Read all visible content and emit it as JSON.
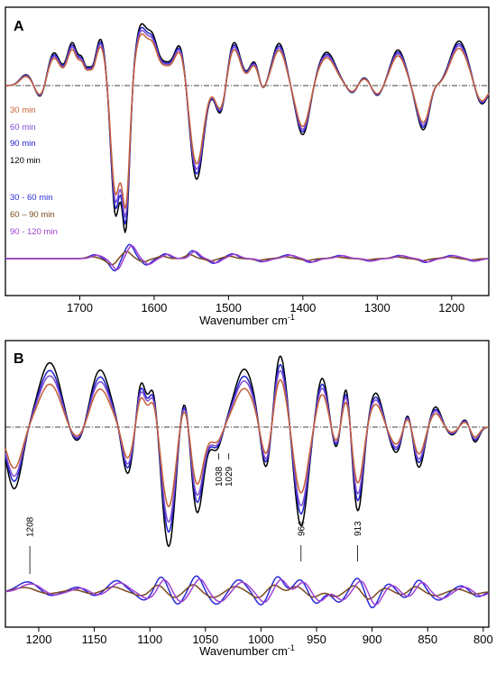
{
  "chart_data": [
    {
      "panel_letter": "A",
      "type": "line",
      "xlabel": "Wavenumber cm",
      "xlabel_sup": "-1",
      "x_axis": "reversed",
      "xlim": [
        1800,
        1150
      ],
      "xticks": [
        1700,
        1600,
        1500,
        1400,
        1300,
        1200
      ],
      "y_ticks": "none",
      "legend": [
        "30 min",
        "60 min",
        "90 min",
        "120 min",
        "30 - 60 min",
        "60 – 90 min",
        "90 - 120 min"
      ],
      "series": [
        {
          "name": "30 min",
          "color": "#c46038",
          "group": "spectra"
        },
        {
          "name": "60 min",
          "color": "#7e4ecf",
          "group": "spectra"
        },
        {
          "name": "90 min",
          "color": "#2222cc",
          "group": "spectra"
        },
        {
          "name": "120 min",
          "color": "#000000",
          "group": "spectra"
        },
        {
          "name": "30 - 60 min",
          "color": "#2a2ad8",
          "group": "difference"
        },
        {
          "name": "60 – 90 min",
          "color": "#7a4a1c",
          "group": "difference"
        },
        {
          "name": "90 - 120 min",
          "color": "#a040d0",
          "group": "difference"
        }
      ],
      "spectra_peaks": [
        {
          "x": 1772,
          "a": 0.1,
          "w": 8
        },
        {
          "x": 1752,
          "a": -0.14,
          "w": 7
        },
        {
          "x": 1735,
          "a": 0.3,
          "w": 9
        },
        {
          "x": 1710,
          "a": 0.38,
          "w": 7
        },
        {
          "x": 1697,
          "a": 0.18,
          "w": 4
        },
        {
          "x": 1688,
          "a": 0.12,
          "w": 4
        },
        {
          "x": 1672,
          "a": 0.42,
          "w": 7
        },
        {
          "x": 1652,
          "a": -1.15,
          "w": 6
        },
        {
          "x": 1638,
          "a": -1.25,
          "w": 5
        },
        {
          "x": 1618,
          "a": 0.52,
          "w": 8
        },
        {
          "x": 1602,
          "a": 0.38,
          "w": 7
        },
        {
          "x": 1585,
          "a": 0.18,
          "w": 8
        },
        {
          "x": 1565,
          "a": 0.38,
          "w": 8
        },
        {
          "x": 1543,
          "a": -0.85,
          "w": 9
        },
        {
          "x": 1510,
          "a": -0.3,
          "w": 7
        },
        {
          "x": 1493,
          "a": 0.4,
          "w": 9
        },
        {
          "x": 1465,
          "a": 0.22,
          "w": 7
        },
        {
          "x": 1455,
          "a": -0.1,
          "w": 5
        },
        {
          "x": 1432,
          "a": 0.38,
          "w": 9
        },
        {
          "x": 1400,
          "a": -0.45,
          "w": 9
        },
        {
          "x": 1368,
          "a": 0.3,
          "w": 12
        },
        {
          "x": 1333,
          "a": -0.08,
          "w": 7
        },
        {
          "x": 1318,
          "a": 0.08,
          "w": 8
        },
        {
          "x": 1300,
          "a": -0.1,
          "w": 7
        },
        {
          "x": 1272,
          "a": 0.32,
          "w": 10
        },
        {
          "x": 1238,
          "a": -0.4,
          "w": 9
        },
        {
          "x": 1225,
          "a": 0.06,
          "w": 5
        },
        {
          "x": 1190,
          "a": 0.4,
          "w": 12
        },
        {
          "x": 1160,
          "a": -0.18,
          "w": 8
        }
      ],
      "spectra_scales": [
        0.86,
        0.92,
        0.97,
        1.03
      ],
      "difference_peaks": [
        {
          "x": 1680,
          "a": 0.12,
          "w": 7
        },
        {
          "x": 1660,
          "a": -0.12,
          "w": 5
        },
        {
          "x": 1652,
          "a": -0.35,
          "w": 5
        },
        {
          "x": 1633,
          "a": 0.45,
          "w": 6
        },
        {
          "x": 1610,
          "a": -0.2,
          "w": 6
        },
        {
          "x": 1585,
          "a": 0.15,
          "w": 6
        },
        {
          "x": 1548,
          "a": 0.25,
          "w": 6
        },
        {
          "x": 1520,
          "a": -0.15,
          "w": 6
        },
        {
          "x": 1495,
          "a": 0.15,
          "w": 7
        },
        {
          "x": 1455,
          "a": -0.1,
          "w": 7
        },
        {
          "x": 1420,
          "a": 0.12,
          "w": 8
        },
        {
          "x": 1390,
          "a": -0.12,
          "w": 7
        },
        {
          "x": 1350,
          "a": 0.1,
          "w": 8
        },
        {
          "x": 1310,
          "a": -0.08,
          "w": 7
        },
        {
          "x": 1270,
          "a": 0.1,
          "w": 8
        },
        {
          "x": 1235,
          "a": -0.12,
          "w": 7
        },
        {
          "x": 1200,
          "a": 0.1,
          "w": 8
        },
        {
          "x": 1170,
          "a": -0.08,
          "w": 7
        }
      ],
      "difference_variants": [
        {
          "scale": 1.0,
          "shift": 0
        },
        {
          "scale": 0.5,
          "shift": 4
        },
        {
          "scale": 0.9,
          "shift": -3
        }
      ]
    },
    {
      "panel_letter": "B",
      "type": "line",
      "xlabel": "Wavenumber cm",
      "xlabel_sup": "-1",
      "x_axis": "reversed",
      "xlim": [
        1230,
        795
      ],
      "xticks": [
        1200,
        1150,
        1100,
        1050,
        1000,
        950,
        900,
        850,
        800
      ],
      "y_ticks": "none",
      "series": [
        {
          "name": "30 min",
          "color": "#c46038",
          "group": "spectra"
        },
        {
          "name": "60 min",
          "color": "#7e4ecf",
          "group": "spectra"
        },
        {
          "name": "90 min",
          "color": "#2222cc",
          "group": "spectra"
        },
        {
          "name": "120 min",
          "color": "#000000",
          "group": "spectra"
        },
        {
          "name": "30 - 60 min",
          "color": "#2a2ad8",
          "group": "difference"
        },
        {
          "name": "60 – 90 min",
          "color": "#7a4a1c",
          "group": "difference"
        },
        {
          "name": "90 - 120 min",
          "color": "#a040d0",
          "group": "difference"
        }
      ],
      "annotations": [
        {
          "label": "1208",
          "x": 1208,
          "where": "difference"
        },
        {
          "label": "1038",
          "x": 1038,
          "where": "spectra"
        },
        {
          "label": "1029",
          "x": 1029,
          "where": "spectra"
        },
        {
          "label": "964",
          "x": 964,
          "where": "gap"
        },
        {
          "label": "913",
          "x": 913,
          "where": "gap"
        }
      ],
      "spectra_peaks": [
        {
          "x": 1222,
          "a": -0.75,
          "w": 7
        },
        {
          "x": 1190,
          "a": 0.78,
          "w": 10
        },
        {
          "x": 1165,
          "a": -0.25,
          "w": 8
        },
        {
          "x": 1145,
          "a": 0.7,
          "w": 9
        },
        {
          "x": 1120,
          "a": -0.58,
          "w": 5
        },
        {
          "x": 1108,
          "a": 0.55,
          "w": 4
        },
        {
          "x": 1097,
          "a": 0.5,
          "w": 4
        },
        {
          "x": 1083,
          "a": -1.45,
          "w": 6
        },
        {
          "x": 1068,
          "a": 0.58,
          "w": 5
        },
        {
          "x": 1058,
          "a": -1.1,
          "w": 6
        },
        {
          "x": 1040,
          "a": -0.28,
          "w": 5
        },
        {
          "x": 1015,
          "a": 0.7,
          "w": 9
        },
        {
          "x": 995,
          "a": -0.65,
          "w": 5
        },
        {
          "x": 983,
          "a": 0.9,
          "w": 6
        },
        {
          "x": 964,
          "a": -1.2,
          "w": 6
        },
        {
          "x": 945,
          "a": 0.6,
          "w": 5
        },
        {
          "x": 932,
          "a": -0.3,
          "w": 4
        },
        {
          "x": 923,
          "a": 0.6,
          "w": 4
        },
        {
          "x": 913,
          "a": -1.05,
          "w": 5
        },
        {
          "x": 897,
          "a": 0.42,
          "w": 6
        },
        {
          "x": 878,
          "a": -0.32,
          "w": 6
        },
        {
          "x": 868,
          "a": 0.28,
          "w": 4
        },
        {
          "x": 858,
          "a": -0.5,
          "w": 5
        },
        {
          "x": 843,
          "a": 0.25,
          "w": 5
        },
        {
          "x": 828,
          "a": -0.1,
          "w": 5
        },
        {
          "x": 815,
          "a": 0.12,
          "w": 5
        },
        {
          "x": 808,
          "a": -0.22,
          "w": 4
        }
      ],
      "spectra_scales": [
        0.72,
        0.86,
        0.95,
        1.08
      ],
      "difference_peaks": [
        {
          "x": 1210,
          "a": 0.25,
          "w": 9
        },
        {
          "x": 1190,
          "a": -0.1,
          "w": 7
        },
        {
          "x": 1165,
          "a": 0.12,
          "w": 7
        },
        {
          "x": 1150,
          "a": -0.1,
          "w": 6
        },
        {
          "x": 1130,
          "a": 0.28,
          "w": 7
        },
        {
          "x": 1105,
          "a": -0.2,
          "w": 6
        },
        {
          "x": 1090,
          "a": 0.38,
          "w": 5
        },
        {
          "x": 1075,
          "a": -0.3,
          "w": 5
        },
        {
          "x": 1058,
          "a": 0.4,
          "w": 5
        },
        {
          "x": 1040,
          "a": -0.3,
          "w": 6
        },
        {
          "x": 1020,
          "a": 0.3,
          "w": 6
        },
        {
          "x": 1000,
          "a": -0.32,
          "w": 5
        },
        {
          "x": 985,
          "a": 0.38,
          "w": 5
        },
        {
          "x": 965,
          "a": 0.3,
          "w": 5
        },
        {
          "x": 950,
          "a": -0.28,
          "w": 5
        },
        {
          "x": 930,
          "a": -0.25,
          "w": 5
        },
        {
          "x": 913,
          "a": 0.35,
          "w": 5
        },
        {
          "x": 900,
          "a": -0.4,
          "w": 5
        },
        {
          "x": 885,
          "a": 0.2,
          "w": 5
        },
        {
          "x": 870,
          "a": -0.15,
          "w": 5
        },
        {
          "x": 858,
          "a": 0.3,
          "w": 5
        },
        {
          "x": 840,
          "a": -0.2,
          "w": 6
        },
        {
          "x": 820,
          "a": 0.15,
          "w": 6
        },
        {
          "x": 805,
          "a": -0.12,
          "w": 5
        }
      ],
      "difference_variants": [
        {
          "scale": 1.0,
          "shift": 0
        },
        {
          "scale": 0.45,
          "shift": 3
        },
        {
          "scale": 0.8,
          "shift": -3
        }
      ]
    }
  ]
}
